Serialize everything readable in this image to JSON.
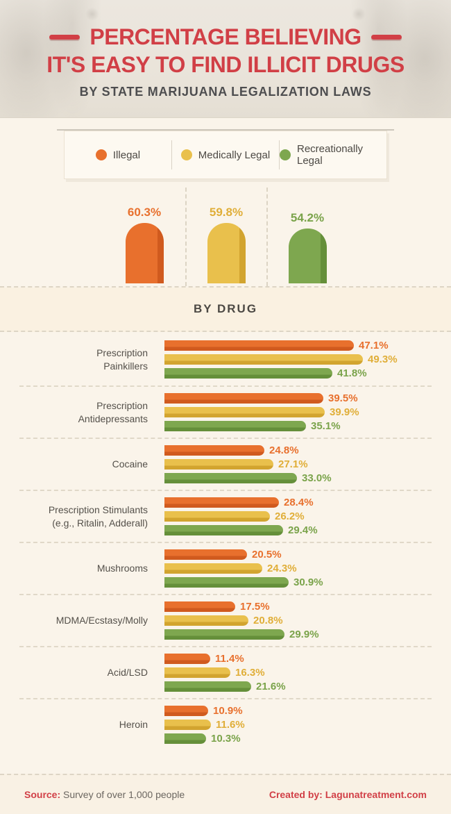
{
  "header": {
    "title_line1": "PERCENTAGE BELIEVING",
    "title_line2": "IT'S EASY TO FIND ILLICIT DRUGS",
    "subtitle": "BY STATE MARIJUANA LEGALIZATION LAWS"
  },
  "legend": {
    "items": [
      {
        "label": "Illegal",
        "color": "#e8702d",
        "dark": "#d05a1e",
        "text_color": "#e8702d"
      },
      {
        "label": "Medically Legal",
        "color": "#e9c04c",
        "dark": "#d2a42f",
        "text_color": "#e0ae38"
      },
      {
        "label": "Recreationally Legal",
        "color": "#7ea74f",
        "dark": "#658f3a",
        "text_color": "#7aa34a"
      }
    ]
  },
  "by_drug_header": "BY DRUG",
  "chart_data": [
    {
      "type": "bar",
      "title": "Percentage believing it's easy to find illicit drugs, by state marijuana legalization laws",
      "categories": [
        "Illegal",
        "Medically Legal",
        "Recreationally Legal"
      ],
      "values": [
        60.3,
        59.8,
        54.2
      ],
      "unit": "%",
      "ylim": [
        0,
        65
      ],
      "grid": false,
      "legend_position": "top"
    },
    {
      "type": "bar",
      "orientation": "horizontal",
      "title": "By Drug",
      "unit": "%",
      "xlim": [
        0,
        50
      ],
      "grid": false,
      "categories": [
        "Prescription Painkillers",
        "Prescription Antidepressants",
        "Cocaine",
        "Prescription Stimulants (e.g., Ritalin, Adderall)",
        "Mushrooms",
        "MDMA/Ecstasy/Molly",
        "Acid/LSD",
        "Heroin"
      ],
      "category_lines": [
        [
          "Prescription",
          "Painkillers"
        ],
        [
          "Prescription",
          "Antidepressants"
        ],
        [
          "Cocaine"
        ],
        [
          "Prescription Stimulants",
          "(e.g., Ritalin, Adderall)"
        ],
        [
          "Mushrooms"
        ],
        [
          "MDMA/Ecstasy/Molly"
        ],
        [
          "Acid/LSD"
        ],
        [
          "Heroin"
        ]
      ],
      "series": [
        {
          "name": "Illegal",
          "values": [
            47.1,
            39.5,
            24.8,
            28.4,
            20.5,
            17.5,
            11.4,
            10.9
          ]
        },
        {
          "name": "Medically Legal",
          "values": [
            49.3,
            39.9,
            27.1,
            26.2,
            24.3,
            20.8,
            16.3,
            11.6
          ]
        },
        {
          "name": "Recreationally Legal",
          "values": [
            41.8,
            35.1,
            33.0,
            29.4,
            30.9,
            29.9,
            21.6,
            10.3
          ]
        }
      ]
    }
  ],
  "footer": {
    "source_label": "Source:",
    "source_text": "Survey of over 1,000 people",
    "created_by": "Created by: Lagunatreatment.com"
  },
  "colors": {
    "accent_red": "#d13f46",
    "panel_bg": "#faf4ea",
    "band_bg": "#faf1e1",
    "header_bg": "#e9e3d9"
  }
}
